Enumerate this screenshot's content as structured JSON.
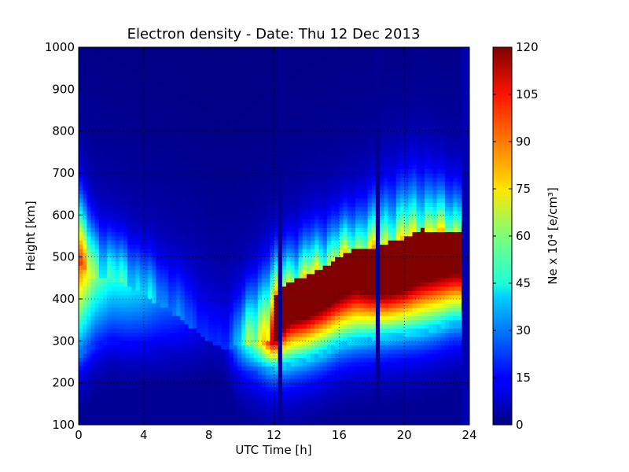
{
  "chart_data": {
    "type": "heatmap",
    "title": "Electron density - Date: Thu 12 Dec 2013",
    "xlabel": "UTC Time [h]",
    "ylabel": "Height [km]",
    "colorbar_label": "Ne x 10⁴  [e/cm³]",
    "xlim": [
      0,
      24
    ],
    "ylim": [
      100,
      1000
    ],
    "clim": [
      0,
      120
    ],
    "colormap": "jet",
    "x_ticks": [
      "0",
      "4",
      "8",
      "12",
      "16",
      "20",
      "24"
    ],
    "y_ticks": [
      "100",
      "200",
      "300",
      "400",
      "500",
      "600",
      "700",
      "800",
      "900",
      "1000"
    ],
    "colorbar_ticks": [
      "0",
      "15",
      "30",
      "45",
      "60",
      "75",
      "90",
      "105",
      "120"
    ],
    "grid": true,
    "data_extent_hours": [
      0,
      23.5
    ],
    "time_hours": [
      0,
      1,
      2,
      3,
      4,
      5,
      6,
      7,
      8,
      9,
      10,
      11,
      12,
      13,
      14,
      15,
      16,
      17,
      18,
      19,
      20,
      21,
      22,
      23
    ],
    "peak_height_km": [
      480,
      450,
      445,
      430,
      410,
      385,
      360,
      330,
      300,
      280,
      290,
      300,
      300,
      345,
      355,
      375,
      400,
      420,
      410,
      410,
      420,
      440,
      450,
      460
    ],
    "peak_density": [
      95,
      60,
      48,
      45,
      38,
      28,
      22,
      14,
      8,
      8,
      40,
      70,
      120,
      120,
      120,
      120,
      120,
      120,
      120,
      120,
      120,
      120,
      120,
      120
    ],
    "layer_bottom_km": [
      270,
      290,
      300,
      290,
      280,
      270,
      260,
      240,
      220,
      210,
      215,
      225,
      235,
      245,
      255,
      270,
      290,
      300,
      305,
      310,
      315,
      320,
      330,
      345
    ],
    "layer_top_km": [
      700,
      620,
      600,
      580,
      560,
      540,
      520,
      500,
      460,
      440,
      460,
      500,
      540,
      560,
      580,
      600,
      620,
      640,
      660,
      690,
      700,
      720,
      700,
      690
    ],
    "gaps_hours": [
      12.3,
      18.4
    ]
  }
}
